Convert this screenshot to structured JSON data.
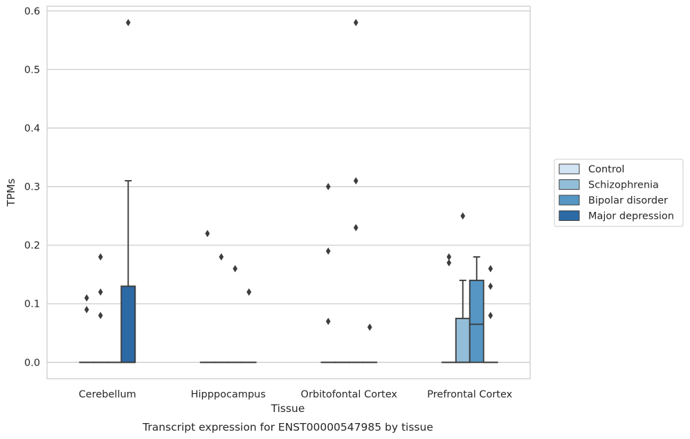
{
  "caption": "Transcript expression for ENST00000547985 by tissue",
  "chart_data": {
    "type": "box",
    "xlabel": "Tissue",
    "ylabel": "TPMs",
    "ylim": [
      -0.028,
      0.608
    ],
    "yticks": [
      0.0,
      0.1,
      0.2,
      0.3,
      0.4,
      0.5,
      0.6
    ],
    "ytick_labels": [
      "0.0",
      "0.1",
      "0.2",
      "0.3",
      "0.4",
      "0.5",
      "0.6"
    ],
    "grid": "horizontal",
    "legend_position": "right",
    "categories": [
      "Cerebellum",
      "Hipppocampus",
      "Orbitofontal Cortex",
      "Prefrontal Cortex"
    ],
    "series": [
      {
        "name": "Control",
        "color": "#d3e4f3",
        "boxes": [
          {
            "q1": 0,
            "median": 0,
            "q3": 0,
            "whislo": 0,
            "whishi": 0,
            "fliers": [
              0.11,
              0.09
            ]
          },
          {
            "q1": 0,
            "median": 0,
            "q3": 0,
            "whislo": 0,
            "whishi": 0,
            "fliers": [
              0.22
            ]
          },
          {
            "q1": 0,
            "median": 0,
            "q3": 0,
            "whislo": 0,
            "whishi": 0,
            "fliers": [
              0.3,
              0.19,
              0.07
            ]
          },
          {
            "q1": 0,
            "median": 0,
            "q3": 0,
            "whislo": 0,
            "whishi": 0,
            "fliers": [
              0.18,
              0.17
            ]
          }
        ]
      },
      {
        "name": "Schizophrenia",
        "color": "#93bed9",
        "boxes": [
          {
            "q1": 0,
            "median": 0,
            "q3": 0,
            "whislo": 0,
            "whishi": 0,
            "fliers": [
              0.18,
              0.12,
              0.08
            ]
          },
          {
            "q1": 0,
            "median": 0,
            "q3": 0,
            "whislo": 0,
            "whishi": 0,
            "fliers": [
              0.18
            ]
          },
          {
            "q1": 0,
            "median": 0,
            "q3": 0,
            "whislo": 0,
            "whishi": 0,
            "fliers": []
          },
          {
            "q1": 0,
            "median": 0,
            "q3": 0.075,
            "whislo": 0,
            "whishi": 0.14,
            "fliers": [
              0.25
            ]
          }
        ]
      },
      {
        "name": "Bipolar disorder",
        "color": "#5596c4",
        "boxes": [
          {
            "q1": 0,
            "median": 0,
            "q3": 0,
            "whislo": 0,
            "whishi": 0,
            "fliers": []
          },
          {
            "q1": 0,
            "median": 0,
            "q3": 0,
            "whislo": 0,
            "whishi": 0,
            "fliers": [
              0.16
            ]
          },
          {
            "q1": 0,
            "median": 0,
            "q3": 0,
            "whislo": 0,
            "whishi": 0,
            "fliers": [
              0.31,
              0.23,
              0.58
            ]
          },
          {
            "q1": 0,
            "median": 0.065,
            "q3": 0.14,
            "whislo": 0,
            "whishi": 0.18,
            "fliers": []
          }
        ]
      },
      {
        "name": "Major depression",
        "color": "#2c6aa6",
        "boxes": [
          {
            "q1": 0,
            "median": 0,
            "q3": 0.13,
            "whislo": 0,
            "whishi": 0.31,
            "fliers": [
              0.58
            ]
          },
          {
            "q1": 0,
            "median": 0,
            "q3": 0,
            "whislo": 0,
            "whishi": 0,
            "fliers": [
              0.12,
              0.12
            ]
          },
          {
            "q1": 0,
            "median": 0,
            "q3": 0,
            "whislo": 0,
            "whishi": 0,
            "fliers": [
              0.06
            ]
          },
          {
            "q1": 0,
            "median": 0,
            "q3": 0,
            "whislo": 0,
            "whishi": 0,
            "fliers": [
              0.16,
              0.13,
              0.08
            ]
          }
        ]
      }
    ]
  }
}
